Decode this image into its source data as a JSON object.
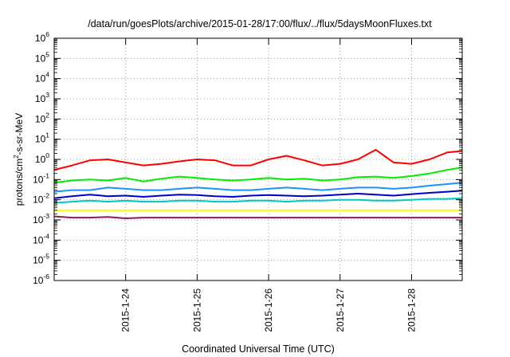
{
  "chart_data": {
    "type": "line",
    "title": "/data/run/goesPlots/archive/2015-01-28/17:00/flux/../flux/5daysMoonFluxes.txt",
    "xlabel": "Coordinated Universal Time (UTC)",
    "ylabel": {
      "prefix": "protons/cm",
      "sup": "2",
      "suffix": "-s-sr-MeV"
    },
    "yscale": "log",
    "ylim": [
      1e-06,
      1000000.0
    ],
    "xlim": [
      "2015-01-23 00:00",
      "2015-01-28 17:00"
    ],
    "y_ticks": [
      {
        "value": 1e-06,
        "base": "10",
        "exp": "-6"
      },
      {
        "value": 1e-05,
        "base": "10",
        "exp": "-5"
      },
      {
        "value": 0.0001,
        "base": "10",
        "exp": "-4"
      },
      {
        "value": 0.001,
        "base": "10",
        "exp": "-3"
      },
      {
        "value": 0.01,
        "base": "10",
        "exp": "-2"
      },
      {
        "value": 0.1,
        "base": "10",
        "exp": "-1"
      },
      {
        "value": 1,
        "base": "10",
        "exp": "0"
      },
      {
        "value": 10,
        "base": "10",
        "exp": "1"
      },
      {
        "value": 100,
        "base": "10",
        "exp": "2"
      },
      {
        "value": 1000,
        "base": "10",
        "exp": "3"
      },
      {
        "value": 10000,
        "base": "10",
        "exp": "4"
      },
      {
        "value": 100000,
        "base": "10",
        "exp": "5"
      },
      {
        "value": 1000000,
        "base": "10",
        "exp": "6"
      }
    ],
    "x_ticks": [
      {
        "value": "2015-01-24",
        "label": "2015-1-24"
      },
      {
        "value": "2015-01-25",
        "label": "2015-1-25"
      },
      {
        "value": "2015-01-26",
        "label": "2015-1-26"
      },
      {
        "value": "2015-01-27",
        "label": "2015-1-27"
      },
      {
        "value": "2015-01-28",
        "label": "2015-1-28"
      }
    ],
    "grid": true,
    "legend": "none",
    "x": [
      "2015-01-23 00:00",
      "2015-01-23 06:00",
      "2015-01-23 12:00",
      "2015-01-23 18:00",
      "2015-01-24 00:00",
      "2015-01-24 06:00",
      "2015-01-24 12:00",
      "2015-01-24 18:00",
      "2015-01-25 00:00",
      "2015-01-25 06:00",
      "2015-01-25 12:00",
      "2015-01-25 18:00",
      "2015-01-26 00:00",
      "2015-01-26 06:00",
      "2015-01-26 12:00",
      "2015-01-26 18:00",
      "2015-01-27 00:00",
      "2015-01-27 06:00",
      "2015-01-27 12:00",
      "2015-01-27 18:00",
      "2015-01-28 00:00",
      "2015-01-28 06:00",
      "2015-01-28 12:00",
      "2015-01-28 17:00"
    ],
    "series": [
      {
        "color": "#ff0000",
        "values": [
          0.3,
          0.5,
          0.9,
          1.0,
          0.7,
          0.5,
          0.6,
          0.8,
          1.0,
          0.9,
          0.5,
          0.5,
          1.0,
          1.5,
          0.9,
          0.5,
          0.6,
          1.0,
          3.0,
          0.7,
          0.6,
          1.0,
          2.2,
          2.6
        ]
      },
      {
        "color": "#00ee00",
        "values": [
          0.07,
          0.09,
          0.1,
          0.09,
          0.12,
          0.08,
          0.11,
          0.14,
          0.12,
          0.1,
          0.09,
          0.1,
          0.12,
          0.1,
          0.11,
          0.09,
          0.1,
          0.13,
          0.14,
          0.12,
          0.15,
          0.2,
          0.3,
          0.4
        ]
      },
      {
        "color": "#1e90ff",
        "values": [
          0.025,
          0.03,
          0.03,
          0.04,
          0.035,
          0.03,
          0.03,
          0.035,
          0.04,
          0.035,
          0.03,
          0.03,
          0.035,
          0.04,
          0.035,
          0.03,
          0.035,
          0.04,
          0.04,
          0.035,
          0.04,
          0.05,
          0.06,
          0.07
        ]
      },
      {
        "color": "#0000cd",
        "values": [
          0.012,
          0.015,
          0.018,
          0.015,
          0.016,
          0.014,
          0.016,
          0.018,
          0.017,
          0.015,
          0.014,
          0.016,
          0.017,
          0.016,
          0.015,
          0.016,
          0.018,
          0.02,
          0.018,
          0.016,
          0.019,
          0.022,
          0.025,
          0.028
        ]
      },
      {
        "color": "#00c8c8",
        "values": [
          0.007,
          0.008,
          0.009,
          0.008,
          0.009,
          0.008,
          0.008,
          0.009,
          0.009,
          0.008,
          0.008,
          0.009,
          0.009,
          0.008,
          0.009,
          0.009,
          0.01,
          0.01,
          0.009,
          0.009,
          0.01,
          0.011,
          0.011,
          0.012
        ]
      },
      {
        "color": "#ffff00",
        "values": [
          0.003,
          0.003,
          0.003,
          0.003,
          0.003,
          0.003,
          0.003,
          0.003,
          0.003,
          0.003,
          0.003,
          0.003,
          0.003,
          0.003,
          0.003,
          0.003,
          0.003,
          0.003,
          0.003,
          0.003,
          0.003,
          0.003,
          0.003,
          0.003
        ]
      },
      {
        "color": "#8b1a5a",
        "values": [
          0.0015,
          0.0013,
          0.0013,
          0.0014,
          0.0012,
          0.0013,
          0.0013,
          0.0013,
          0.0013,
          0.0013,
          0.0013,
          0.0013,
          0.0013,
          0.0013,
          0.0013,
          0.0013,
          0.0013,
          0.0013,
          0.0013,
          0.0013,
          0.0013,
          0.0013,
          0.0013,
          0.0013
        ]
      }
    ]
  }
}
